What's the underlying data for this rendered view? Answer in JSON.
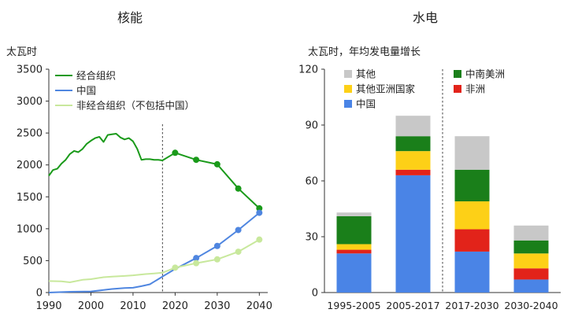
{
  "chart_data": [
    {
      "type": "line",
      "title": "核能",
      "ylabel": "太瓦时",
      "ylim": [
        0,
        3500
      ],
      "yticks": [
        0,
        500,
        1000,
        1500,
        2000,
        2500,
        3000,
        3500
      ],
      "xlim": [
        1990,
        2042
      ],
      "xticks": [
        1990,
        2000,
        2010,
        2020,
        2030,
        2040
      ],
      "projection_start": 2017,
      "series": [
        {
          "name": "经合组织",
          "color": "#1a9a1a",
          "x": [
            1990,
            1991,
            1992,
            1993,
            1994,
            1995,
            1996,
            1997,
            1998,
            1999,
            2000,
            2001,
            2002,
            2003,
            2004,
            2005,
            2006,
            2007,
            2008,
            2009,
            2010,
            2011,
            2012,
            2013,
            2014,
            2015,
            2016,
            2017,
            2020,
            2025,
            2030,
            2035,
            2040
          ],
          "y": [
            1830,
            1920,
            1940,
            2020,
            2080,
            2170,
            2220,
            2200,
            2250,
            2330,
            2380,
            2420,
            2440,
            2360,
            2470,
            2480,
            2490,
            2430,
            2400,
            2420,
            2370,
            2250,
            2080,
            2090,
            2090,
            2080,
            2080,
            2070,
            2190,
            2080,
            2010,
            1630,
            1320
          ],
          "markers": [
            2020,
            2025,
            2030,
            2035,
            2040
          ]
        },
        {
          "name": "中国",
          "color": "#4f86e0",
          "x": [
            1990,
            1995,
            2000,
            2003,
            2005,
            2008,
            2010,
            2012,
            2014,
            2015,
            2016,
            2017,
            2020,
            2025,
            2030,
            2035,
            2040
          ],
          "y": [
            0,
            12,
            17,
            40,
            55,
            70,
            75,
            100,
            130,
            170,
            210,
            250,
            370,
            540,
            730,
            980,
            1250
          ],
          "markers": [
            2025,
            2030,
            2035,
            2040
          ]
        },
        {
          "name": "非经合组织（不包括中国）",
          "color": "#c8e89c",
          "x": [
            1990,
            1993,
            1995,
            1998,
            2000,
            2003,
            2005,
            2008,
            2010,
            2013,
            2015,
            2017,
            2020,
            2025,
            2030,
            2035,
            2040
          ],
          "y": [
            180,
            175,
            160,
            200,
            210,
            240,
            250,
            260,
            270,
            290,
            300,
            310,
            390,
            460,
            520,
            640,
            830
          ],
          "markers": [
            2020,
            2025,
            2030,
            2035,
            2040
          ]
        }
      ]
    },
    {
      "type": "bar",
      "stacked": true,
      "title": "水电",
      "ylabel": "太瓦时，年均发电量增长",
      "ylim": [
        0,
        120
      ],
      "yticks": [
        0,
        30,
        60,
        90,
        120
      ],
      "categories": [
        "1995-2005",
        "2005-2017",
        "2017-2030",
        "2030-2040"
      ],
      "divider_after_index": 1,
      "series": [
        {
          "name": "中国",
          "color": "#4a84e6",
          "values": [
            21,
            63,
            22,
            7
          ]
        },
        {
          "name": "非洲",
          "color": "#e2231a",
          "values": [
            2,
            3,
            12,
            6
          ]
        },
        {
          "name": "其他亚洲国家",
          "color": "#fdd017",
          "values": [
            3,
            10,
            15,
            8
          ]
        },
        {
          "name": "中南美洲",
          "color": "#1a7f1a",
          "values": [
            15,
            8,
            17,
            7
          ]
        },
        {
          "name": "其他",
          "color": "#c8c8c8",
          "values": [
            2,
            11,
            18,
            8
          ]
        }
      ],
      "legend_order": [
        "其他",
        "中南美洲",
        "其他亚洲国家",
        "非洲",
        "中国"
      ]
    }
  ]
}
